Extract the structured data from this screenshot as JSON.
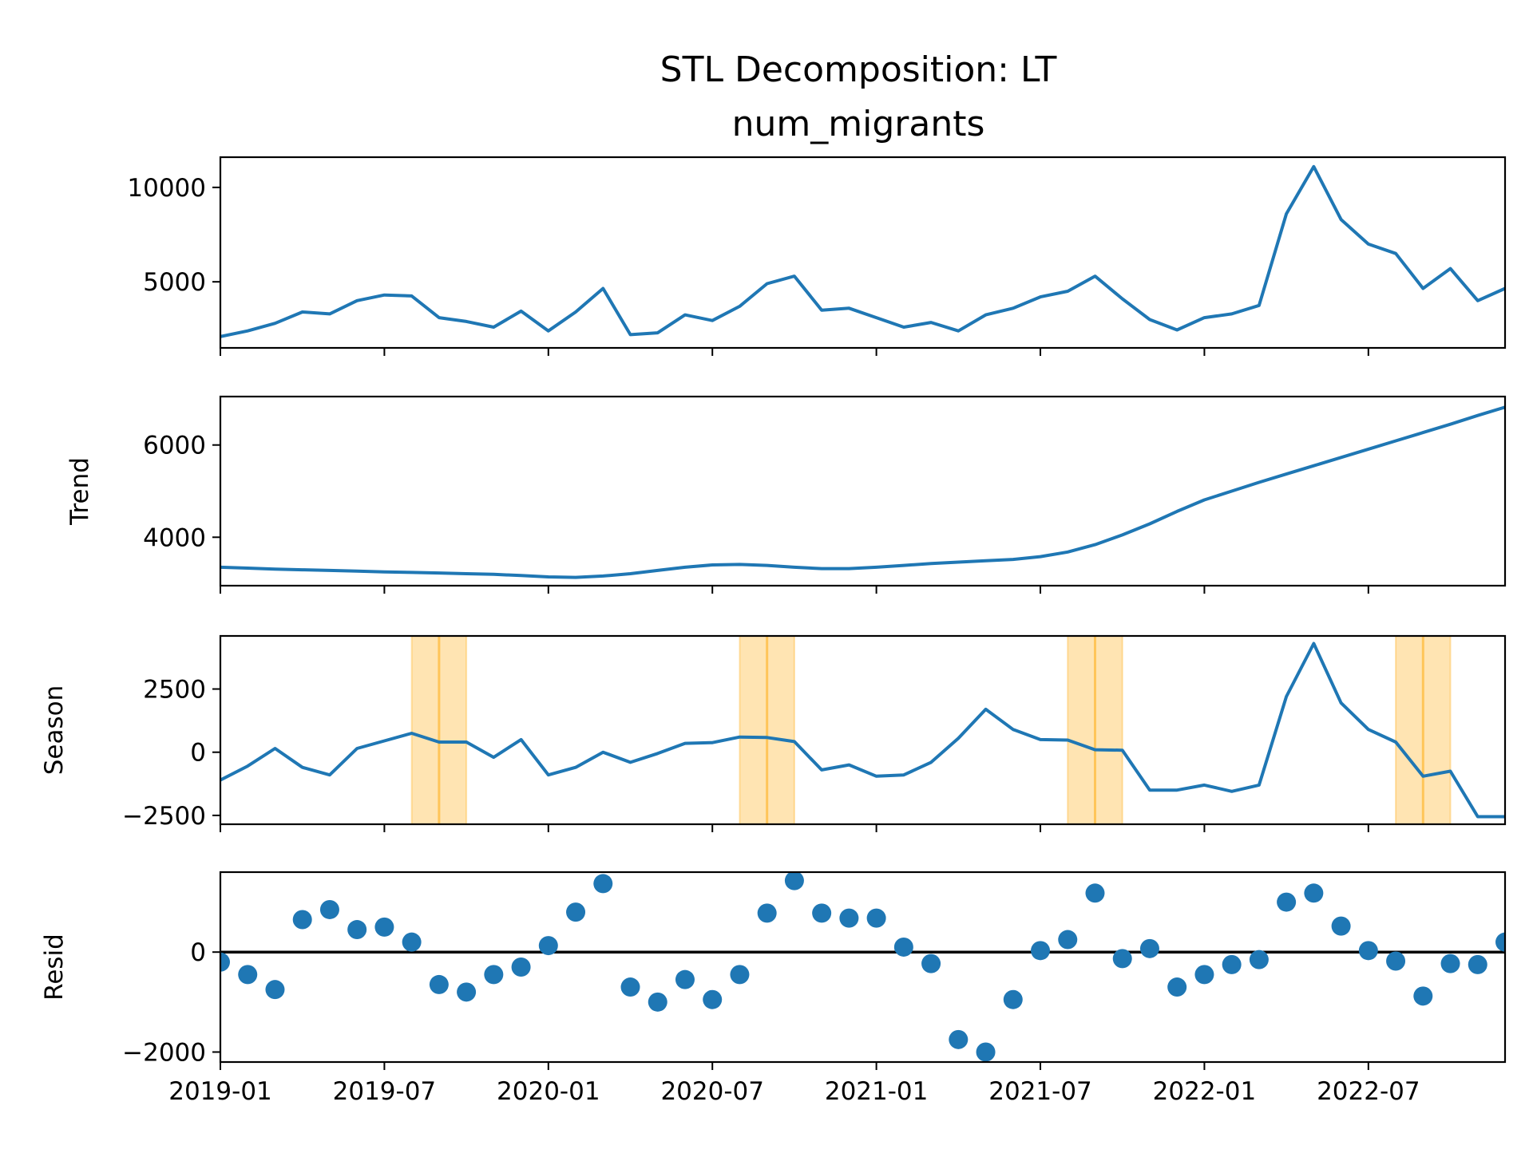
{
  "chart_data": {
    "type": "line",
    "title": "STL Decomposition: LT",
    "subtitle": "num_migrants",
    "x": [
      "2019-01",
      "2019-02",
      "2019-03",
      "2019-04",
      "2019-05",
      "2019-06",
      "2019-07",
      "2019-08",
      "2019-09",
      "2019-10",
      "2019-11",
      "2019-12",
      "2020-01",
      "2020-02",
      "2020-03",
      "2020-04",
      "2020-05",
      "2020-06",
      "2020-07",
      "2020-08",
      "2020-09",
      "2020-10",
      "2020-11",
      "2020-12",
      "2021-01",
      "2021-02",
      "2021-03",
      "2021-04",
      "2021-05",
      "2021-06",
      "2021-07",
      "2021-08",
      "2021-09",
      "2021-10",
      "2021-11",
      "2021-12",
      "2022-01",
      "2022-02",
      "2022-03",
      "2022-04",
      "2022-05",
      "2022-06",
      "2022-07",
      "2022-08",
      "2022-09",
      "2022-10",
      "2022-11",
      "2022-12"
    ],
    "x_tick_labels": [
      "2019-01",
      "2019-07",
      "2020-01",
      "2020-07",
      "2021-01",
      "2021-07",
      "2022-01",
      "2022-07"
    ],
    "panels": [
      {
        "name": "observed",
        "ylabel": "",
        "kind": "line",
        "color": "#1f77b4",
        "ylim": [
          1500,
          11600
        ],
        "yticks": [
          5000,
          10000
        ],
        "values": [
          2100,
          2400,
          2800,
          3400,
          3300,
          4000,
          4300,
          4250,
          3100,
          2900,
          2600,
          3450,
          2400,
          3400,
          4650,
          2200,
          2300,
          3250,
          2950,
          3700,
          4900,
          5300,
          3500,
          3600,
          3100,
          2600,
          2850,
          2400,
          3250,
          3600,
          4200,
          4500,
          5300,
          4100,
          3000,
          2450,
          3100,
          3300,
          3750,
          8600,
          11100,
          8300,
          7000,
          6500,
          4650,
          5700,
          4000,
          4650
        ]
      },
      {
        "name": "trend",
        "ylabel": "Trend",
        "kind": "line",
        "color": "#1f77b4",
        "ylim": [
          2950,
          7050
        ],
        "yticks": [
          4000,
          6000
        ],
        "values": [
          3350,
          3330,
          3310,
          3295,
          3280,
          3265,
          3250,
          3238,
          3225,
          3210,
          3195,
          3170,
          3140,
          3130,
          3160,
          3210,
          3280,
          3350,
          3400,
          3410,
          3390,
          3350,
          3320,
          3320,
          3350,
          3390,
          3430,
          3460,
          3490,
          3520,
          3580,
          3680,
          3840,
          4050,
          4290,
          4560,
          4810,
          5000,
          5190,
          5370,
          5550,
          5730,
          5910,
          6090,
          6270,
          6450,
          6640,
          6820
        ]
      },
      {
        "name": "season",
        "ylabel": "Season",
        "kind": "line",
        "color": "#1f77b4",
        "ylim": [
          -2850,
          4600
        ],
        "yticks": [
          -2500,
          0,
          2500
        ],
        "values": [
          -1100,
          -550,
          150,
          -600,
          -900,
          150,
          450,
          750,
          400,
          400,
          -200,
          500,
          -900,
          -600,
          0,
          -400,
          -50,
          350,
          380,
          600,
          580,
          420,
          -700,
          -500,
          -950,
          -900,
          -400,
          550,
          1700,
          900,
          500,
          480,
          100,
          80,
          -1500,
          -1500,
          -1300,
          -1550,
          -1300,
          2200,
          4300,
          1950,
          900,
          400,
          -950,
          -750,
          -2550,
          -2550
        ],
        "highlight_centers": [
          "2019-09",
          "2020-09",
          "2021-09",
          "2022-09"
        ],
        "highlight_color": "#ffa500"
      },
      {
        "name": "resid",
        "ylabel": "Resid",
        "kind": "scatter",
        "color": "#1f77b4",
        "zero_line": true,
        "ylim": [
          -2200,
          1600
        ],
        "yticks": [
          -2000,
          0
        ],
        "values": [
          -200,
          -450,
          -750,
          650,
          850,
          450,
          500,
          200,
          -650,
          -800,
          -450,
          -300,
          130,
          800,
          1370,
          -700,
          -1000,
          -550,
          -950,
          -450,
          780,
          1430,
          780,
          680,
          680,
          100,
          -230,
          -1750,
          -2000,
          -950,
          30,
          250,
          1180,
          -130,
          70,
          -700,
          -450,
          -250,
          -150,
          1000,
          1180,
          520,
          30,
          -180,
          -880,
          -230,
          -250,
          200
        ]
      }
    ]
  }
}
